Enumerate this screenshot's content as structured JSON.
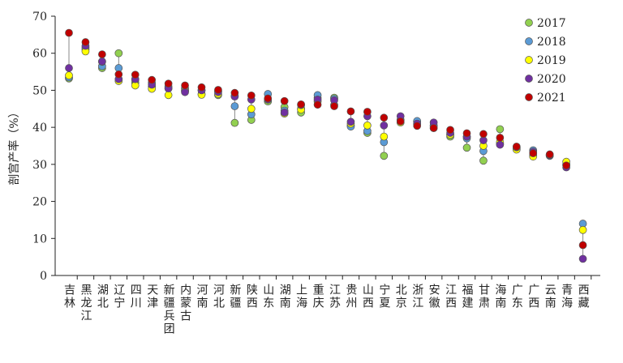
{
  "chart_data": {
    "type": "dot",
    "y_label": "剖宫产率（%）",
    "categories": [
      "吉林",
      "黑龙江",
      "湖北",
      "辽宁",
      "四川",
      "天津",
      "新疆兵团",
      "内蒙古",
      "河南",
      "河北",
      "新疆",
      "陕西",
      "山东",
      "湖南",
      "上海",
      "重庆",
      "江苏",
      "贵州",
      "山西",
      "宁夏",
      "北京",
      "浙江",
      "安徽",
      "江西",
      "福建",
      "甘肃",
      "海南",
      "广东",
      "广西",
      "云南",
      "青海",
      "西藏"
    ],
    "series": [
      {
        "name": "2017",
        "color": "#92d050",
        "values": [
          53.2,
          61,
          56,
          60,
          52,
          51,
          50.5,
          50,
          49,
          48.7,
          41.2,
          42,
          47,
          45.5,
          44,
          48,
          48,
          40.5,
          38.5,
          32.3,
          42,
          41.5,
          40.3,
          37.5,
          34.5,
          31,
          39.5,
          34.5,
          32.5,
          32.4,
          30,
          null
        ]
      },
      {
        "name": "2018",
        "color": "#5b9bd5",
        "values": [
          53.5,
          61.5,
          56.5,
          56,
          52.8,
          52,
          51,
          50.5,
          50,
          49.8,
          45.7,
          43.5,
          49,
          44.5,
          45,
          48.7,
          47.7,
          40.2,
          39,
          36,
          42,
          41.7,
          40.5,
          38,
          37,
          33.6,
          35.5,
          34.2,
          33.8,
          32.3,
          29.8,
          14
        ]
      },
      {
        "name": "2019",
        "color": "#ffff00",
        "values": [
          54,
          60.5,
          57.7,
          52.5,
          51.3,
          50.4,
          48.7,
          49.8,
          48.8,
          49,
          48.5,
          45,
          47.5,
          43.7,
          44.8,
          47,
          46,
          41,
          40.5,
          37.5,
          41.3,
          40.8,
          39.8,
          38,
          37.5,
          35,
          36,
          34,
          32.1,
          32.6,
          30.7,
          12.3
        ]
      },
      {
        "name": "2020",
        "color": "#7030a0",
        "values": [
          56,
          62,
          57.8,
          53,
          53,
          51.5,
          50.5,
          49.5,
          50,
          49.5,
          48.3,
          47.5,
          47.5,
          44,
          46,
          47.5,
          47.3,
          41.5,
          43,
          40.5,
          43,
          41,
          41.3,
          38.5,
          37.5,
          36.5,
          35.3,
          34.6,
          33.4,
          32.5,
          29.2,
          4.5
        ]
      },
      {
        "name": "2021",
        "color": "#c00000",
        "values": [
          65.5,
          63,
          59.7,
          54.3,
          54.2,
          52.8,
          51.8,
          51.3,
          50.8,
          50.1,
          49.3,
          48.6,
          47.8,
          47.1,
          46.2,
          46.1,
          45.7,
          44.3,
          44.2,
          42.6,
          41.6,
          40.4,
          39.8,
          39.3,
          38.4,
          38.2,
          37.2,
          34.8,
          33,
          32.7,
          29.7,
          8.2
        ]
      }
    ],
    "ylim": [
      0,
      70
    ],
    "yticks": [
      0,
      10,
      20,
      30,
      40,
      50,
      60,
      70
    ],
    "legend": "top-right"
  }
}
